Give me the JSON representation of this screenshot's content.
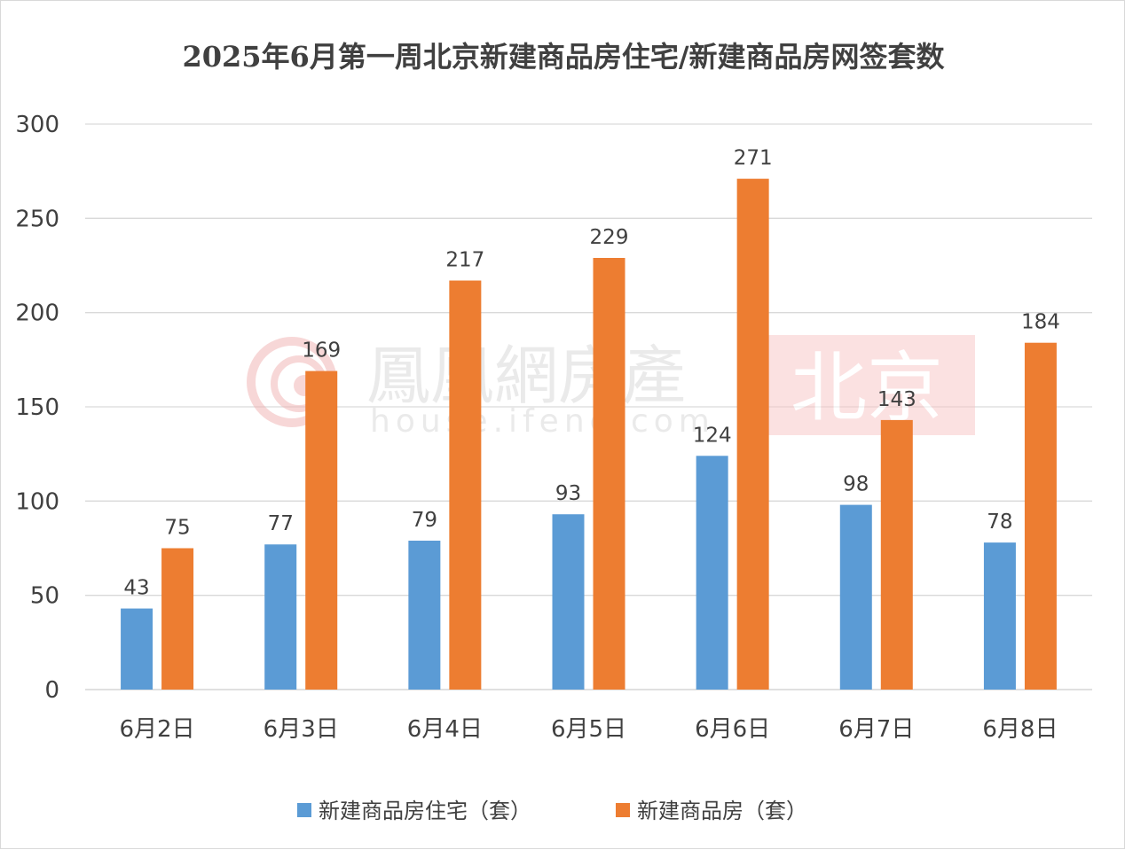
{
  "chart_data": {
    "type": "bar",
    "title": "2025年6月第一周北京新建商品房住宅/新建商品房网签套数",
    "categories": [
      "6月2日",
      "6月3日",
      "6月4日",
      "6月5日",
      "6月6日",
      "6月7日",
      "6月8日"
    ],
    "series": [
      {
        "name": "新建商品房住宅（套）",
        "values": [
          43,
          77,
          79,
          93,
          124,
          98,
          78
        ],
        "color": "#5B9BD5"
      },
      {
        "name": "新建商品房（套）",
        "values": [
          75,
          169,
          217,
          229,
          271,
          143,
          184
        ],
        "color": "#ED7D31"
      }
    ],
    "ylim": [
      0,
      300
    ],
    "yticks": [
      0,
      50,
      100,
      150,
      200,
      250,
      300
    ],
    "grid": true,
    "legend": "bottom",
    "data_labels": true,
    "gridline_color": "#d9d9d9"
  },
  "watermark": {
    "brand_text": "鳳凰網房產",
    "url_text": "house.ifeng.com",
    "city_text": "北京"
  }
}
